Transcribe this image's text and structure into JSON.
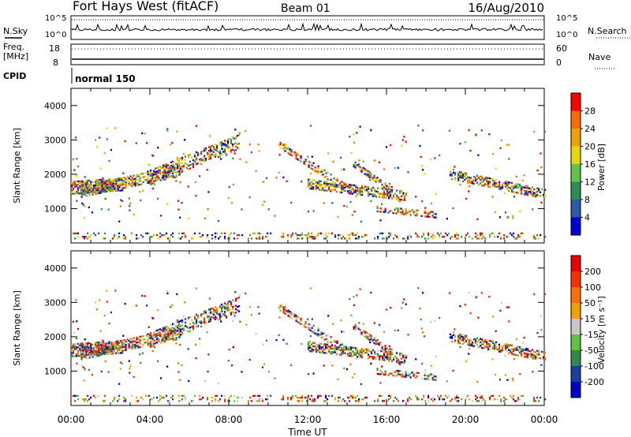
{
  "header": {
    "title": "Fort Hays West (fitACF)",
    "beam": "Beam 01",
    "date": "16/Aug/2010"
  },
  "top_panels": {
    "nsky_label": "N.Sky",
    "nsky_ticks": [
      "10^5",
      "10^0"
    ],
    "nsearch_label": "N.Search",
    "nsearch_ticks": [
      "10^5",
      "10^0"
    ],
    "freq_label_1": "Freq.",
    "freq_label_2": "[MHz]",
    "freq_ticks": [
      "18",
      "8"
    ],
    "nave_label": "Nave",
    "nave_ticks": [
      "60",
      "0"
    ],
    "cpid_label": "CPID",
    "cpid_value": "normal 150"
  },
  "chart_data": [
    {
      "type": "heatmap",
      "ylabel": "Slant Range [km]",
      "xlabel": "Time UT",
      "y_ticks": [
        1000,
        2000,
        3000,
        4000
      ],
      "ylim": [
        0,
        4500
      ],
      "x_ticks": [
        "00:00",
        "04:00",
        "08:00",
        "12:00",
        "16:00",
        "20:00",
        "00:00"
      ],
      "xlim_hours": [
        0,
        24
      ],
      "colorbar": {
        "label": "Power [dB]",
        "ticks": [
          "4",
          "8",
          "12",
          "16",
          "20",
          "24",
          "28"
        ],
        "colors": [
          "#0000dd",
          "#2a5aaa",
          "#2e8b57",
          "#62c24a",
          "#e8d800",
          "#f0a000",
          "#ff6a00",
          "#ff0000"
        ]
      }
    },
    {
      "type": "heatmap",
      "ylabel": "Slant Range [km]",
      "xlabel": "Time UT",
      "y_ticks": [
        1000,
        2000,
        3000,
        4000
      ],
      "ylim": [
        0,
        4500
      ],
      "x_ticks": [
        "00:00",
        "04:00",
        "08:00",
        "12:00",
        "16:00",
        "20:00",
        "00:00"
      ],
      "xlim_hours": [
        0,
        24
      ],
      "colorbar": {
        "label": "Velocity [m s⁻¹]",
        "ticks": [
          "200",
          "100",
          "50",
          "15",
          "-15",
          "-50",
          "-100",
          "-200"
        ],
        "colors": [
          "#0000cc",
          "#1a3e9c",
          "#2f8a4a",
          "#60c23a",
          "#c8c8c8",
          "#f0a000",
          "#ff7000",
          "#ff3000",
          "#ee0000"
        ]
      }
    }
  ]
}
